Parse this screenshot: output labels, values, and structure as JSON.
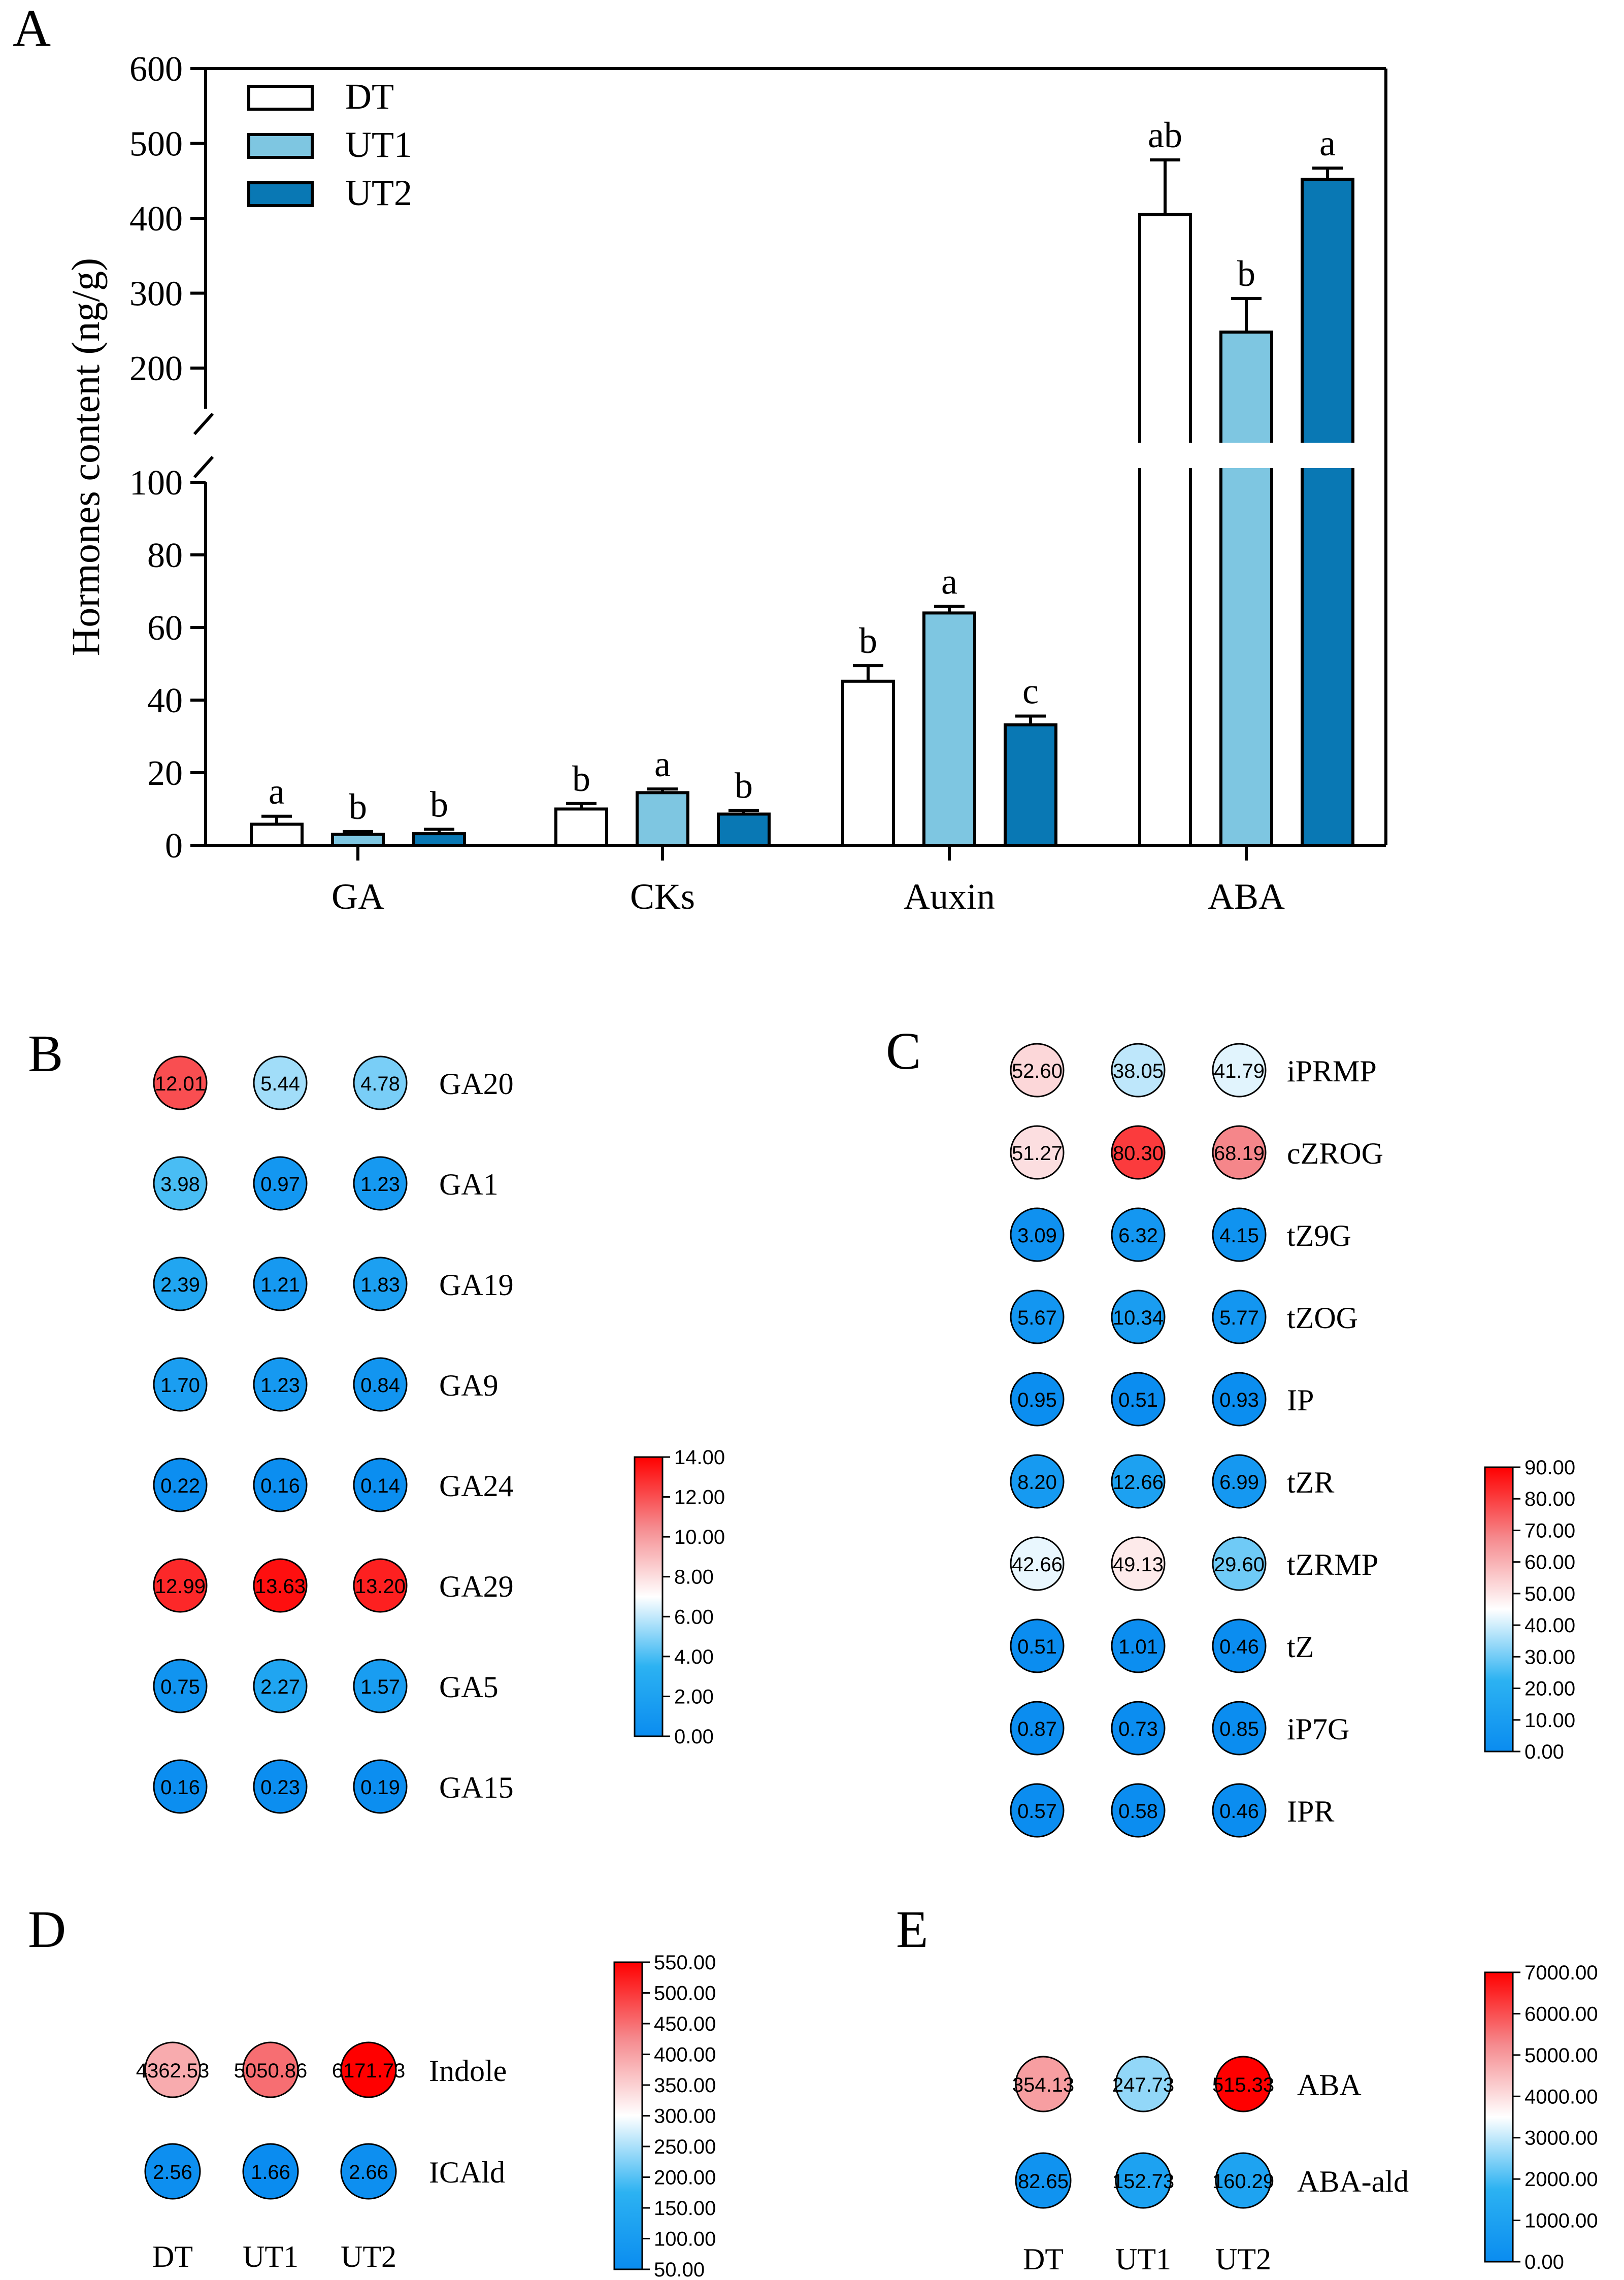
{
  "chart_data": [
    {
      "panel": "A",
      "type": "bar",
      "ylabel": "Hormones content (ng/g)",
      "categories": [
        "GA",
        "CKs",
        "Auxin",
        "ABA"
      ],
      "series": [
        {
          "name": "DT",
          "values": [
            5.8,
            10.0,
            45.2,
            405.0
          ],
          "errors": [
            2.2,
            1.5,
            4.3,
            73.0
          ],
          "letters": [
            "a",
            "b",
            "b",
            "ab"
          ],
          "color": "#ffffff"
        },
        {
          "name": "UT1",
          "values": [
            3.0,
            14.5,
            64.0,
            248.0
          ],
          "errors": [
            0.8,
            1.0,
            1.8,
            45.0
          ],
          "letters": [
            "b",
            "a",
            "a",
            "b"
          ],
          "color": "#7ec6e1"
        },
        {
          "name": "UT2",
          "values": [
            3.2,
            8.6,
            33.2,
            452.0
          ],
          "errors": [
            1.2,
            1.0,
            2.4,
            15.0
          ],
          "letters": [
            "b",
            "b",
            "c",
            "a"
          ],
          "color": "#0978b4"
        }
      ],
      "axis_break": {
        "lower_range": [
          0,
          100
        ],
        "upper_range": [
          150,
          600
        ]
      },
      "yticks_lower": [
        "0",
        "20",
        "40",
        "60",
        "80",
        "100"
      ],
      "yticks_upper": [
        "200",
        "300",
        "400",
        "500",
        "600"
      ]
    },
    {
      "panel": "B",
      "type": "heatmap",
      "columns": [
        "DT",
        "UT1",
        "UT2"
      ],
      "rows": [
        "GA20",
        "GA1",
        "GA19",
        "GA9",
        "GA24",
        "GA29",
        "GA5",
        "GA15"
      ],
      "values": [
        [
          "12.01",
          "5.44",
          "4.78"
        ],
        [
          "3.98",
          "0.97",
          "1.23"
        ],
        [
          "2.39",
          "1.21",
          "1.83"
        ],
        [
          "1.70",
          "1.23",
          "0.84"
        ],
        [
          "0.22",
          "0.16",
          "0.14"
        ],
        [
          "12.99",
          "13.63",
          "13.20"
        ],
        [
          "0.75",
          "2.27",
          "1.57"
        ],
        [
          "0.16",
          "0.23",
          "0.19"
        ]
      ],
      "scale": {
        "min": 0,
        "max": 14,
        "ticks": [
          "14.00",
          "12.00",
          "10.00",
          "8.00",
          "6.00",
          "4.00",
          "2.00",
          "0.00"
        ]
      }
    },
    {
      "panel": "C",
      "type": "heatmap",
      "columns": [
        "DT",
        "UT1",
        "UT2"
      ],
      "rows": [
        "iPRMP",
        "cZROG",
        "tZ9G",
        "tZOG",
        "IP",
        "tZR",
        "tZRMP",
        "tZ",
        "iP7G",
        "IPR"
      ],
      "values": [
        [
          "52.60",
          "38.05",
          "41.79"
        ],
        [
          "51.27",
          "80.30",
          "68.19"
        ],
        [
          "3.09",
          "6.32",
          "4.15"
        ],
        [
          "5.67",
          "10.34",
          "5.77"
        ],
        [
          "0.95",
          "0.51",
          "0.93"
        ],
        [
          "8.20",
          "12.66",
          "6.99"
        ],
        [
          "42.66",
          "49.13",
          "29.60"
        ],
        [
          "0.51",
          "1.01",
          "0.46"
        ],
        [
          "0.87",
          "0.73",
          "0.85"
        ],
        [
          "0.57",
          "0.58",
          "0.46"
        ]
      ],
      "scale": {
        "min": 0,
        "max": 90,
        "ticks": [
          "90.00",
          "80.00",
          "70.00",
          "60.00",
          "50.00",
          "40.00",
          "30.00",
          "20.00",
          "10.00",
          "0.00"
        ]
      }
    },
    {
      "panel": "D",
      "type": "heatmap",
      "columns": [
        "DT",
        "UT1",
        "UT2"
      ],
      "rows": [
        "Indole",
        "ICAld"
      ],
      "values": [
        [
          "4362.53",
          "5050.86",
          "6171.73"
        ],
        [
          "2.56",
          "1.66",
          "2.66"
        ]
      ],
      "color_values": [
        [
          390,
          450,
          550
        ],
        [
          60,
          50,
          60
        ]
      ],
      "scale": {
        "min": 50,
        "max": 550,
        "ticks": [
          "550.00",
          "500.00",
          "450.00",
          "400.00",
          "350.00",
          "300.00",
          "250.00",
          "200.00",
          "150.00",
          "100.00",
          "50.00"
        ]
      }
    },
    {
      "panel": "E",
      "type": "heatmap",
      "columns": [
        "DT",
        "UT1",
        "UT2"
      ],
      "rows": [
        "ABA",
        "ABA-ald"
      ],
      "values": [
        [
          "354.13",
          "247.73",
          "515.33"
        ],
        [
          "82.65",
          "152.73",
          "160.29"
        ]
      ],
      "color_values": [
        [
          4950,
          2600,
          7000
        ],
        [
          300,
          1000,
          1050
        ]
      ],
      "scale": {
        "min": 0,
        "max": 7000,
        "ticks": [
          "7000.00",
          "6000.00",
          "5000.00",
          "4000.00",
          "3000.00",
          "2000.00",
          "1000.00",
          "0.00"
        ]
      }
    }
  ]
}
